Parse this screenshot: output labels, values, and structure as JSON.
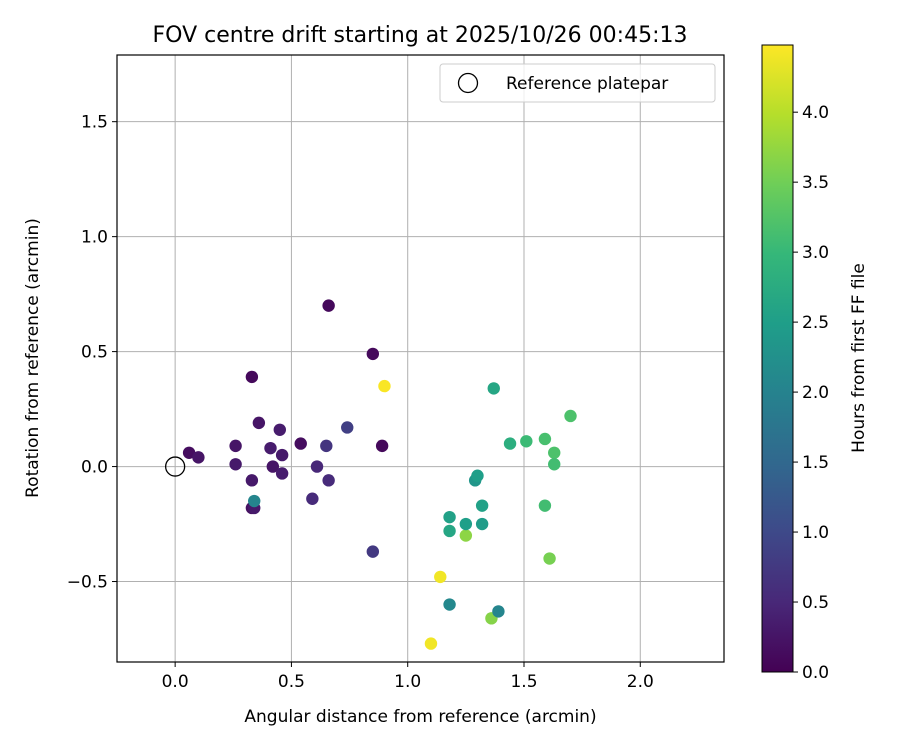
{
  "chart_data": {
    "type": "scatter",
    "title": "FOV centre drift starting at 2025/10/26 00:45:13",
    "xlabel": "Angular distance from reference (arcmin)",
    "ylabel": "Rotation from reference (arcmin)",
    "xlim": [
      -0.25,
      2.36
    ],
    "ylim": [
      -0.85,
      1.79
    ],
    "xticks": [
      0.0,
      0.5,
      1.0,
      1.5,
      2.0
    ],
    "xtick_labels": [
      "0.0",
      "0.5",
      "1.0",
      "1.5",
      "2.0"
    ],
    "yticks": [
      -0.5,
      0.0,
      0.5,
      1.0,
      1.5
    ],
    "ytick_labels": [
      "−0.5",
      "0.0",
      "0.5",
      "1.0",
      "1.5"
    ],
    "grid": true,
    "legend": {
      "location": "upper-right",
      "entries": [
        "Reference platepar"
      ]
    },
    "reference_point": {
      "x": 0.0,
      "y": 0.0,
      "marker": "open-circle",
      "color": "#000000"
    },
    "colorbar": {
      "label": "Hours from first FF file",
      "range": [
        0.0,
        4.48
      ],
      "ticks": [
        0.0,
        0.5,
        1.0,
        1.5,
        2.0,
        2.5,
        3.0,
        3.5,
        4.0
      ],
      "tick_labels": [
        "0.0",
        "0.5",
        "1.0",
        "1.5",
        "2.0",
        "2.5",
        "3.0",
        "3.5",
        "4.0"
      ],
      "colormap": "viridis",
      "colormap_stops": [
        "#440154",
        "#482878",
        "#3e4989",
        "#31688e",
        "#26828e",
        "#1f9e89",
        "#35b779",
        "#6ece58",
        "#b5de2b",
        "#fde725"
      ]
    },
    "points": [
      {
        "x": 0.06,
        "y": 0.06,
        "t": 0.15
      },
      {
        "x": 0.1,
        "y": 0.04,
        "t": 0.25
      },
      {
        "x": 0.26,
        "y": 0.09,
        "t": 0.25
      },
      {
        "x": 0.26,
        "y": 0.01,
        "t": 0.3
      },
      {
        "x": 0.33,
        "y": 0.39,
        "t": 0.1
      },
      {
        "x": 0.33,
        "y": -0.06,
        "t": 0.3
      },
      {
        "x": 0.33,
        "y": -0.18,
        "t": 0.2
      },
      {
        "x": 0.34,
        "y": -0.18,
        "t": 0.3
      },
      {
        "x": 0.34,
        "y": -0.15,
        "t": 2.05
      },
      {
        "x": 0.36,
        "y": 0.19,
        "t": 0.25
      },
      {
        "x": 0.41,
        "y": 0.08,
        "t": 0.35
      },
      {
        "x": 0.42,
        "y": 0.0,
        "t": 0.25
      },
      {
        "x": 0.45,
        "y": 0.16,
        "t": 0.35
      },
      {
        "x": 0.46,
        "y": 0.05,
        "t": 0.3
      },
      {
        "x": 0.46,
        "y": -0.03,
        "t": 0.35
      },
      {
        "x": 0.54,
        "y": 0.1,
        "t": 0.15
      },
      {
        "x": 0.59,
        "y": -0.14,
        "t": 0.55
      },
      {
        "x": 0.61,
        "y": 0.0,
        "t": 0.5
      },
      {
        "x": 0.65,
        "y": 0.09,
        "t": 0.7
      },
      {
        "x": 0.66,
        "y": -0.06,
        "t": 0.55
      },
      {
        "x": 0.66,
        "y": 0.7,
        "t": 0.1
      },
      {
        "x": 0.74,
        "y": 0.17,
        "t": 0.85
      },
      {
        "x": 0.85,
        "y": 0.49,
        "t": 0.1
      },
      {
        "x": 0.85,
        "y": -0.37,
        "t": 0.75
      },
      {
        "x": 0.89,
        "y": 0.09,
        "t": 0.1
      },
      {
        "x": 0.9,
        "y": 0.35,
        "t": 4.45
      },
      {
        "x": 1.1,
        "y": -0.77,
        "t": 4.4
      },
      {
        "x": 1.14,
        "y": -0.48,
        "t": 4.4
      },
      {
        "x": 1.18,
        "y": -0.22,
        "t": 2.55
      },
      {
        "x": 1.18,
        "y": -0.28,
        "t": 2.65
      },
      {
        "x": 1.18,
        "y": -0.6,
        "t": 2.1
      },
      {
        "x": 1.25,
        "y": -0.3,
        "t": 3.7
      },
      {
        "x": 1.25,
        "y": -0.25,
        "t": 2.5
      },
      {
        "x": 1.29,
        "y": -0.06,
        "t": 2.35
      },
      {
        "x": 1.3,
        "y": -0.04,
        "t": 2.5
      },
      {
        "x": 1.32,
        "y": -0.17,
        "t": 2.55
      },
      {
        "x": 1.32,
        "y": -0.25,
        "t": 2.45
      },
      {
        "x": 1.36,
        "y": -0.66,
        "t": 3.65
      },
      {
        "x": 1.37,
        "y": 0.34,
        "t": 2.65
      },
      {
        "x": 1.39,
        "y": -0.63,
        "t": 2.05
      },
      {
        "x": 1.44,
        "y": 0.1,
        "t": 2.8
      },
      {
        "x": 1.51,
        "y": 0.11,
        "t": 3.05
      },
      {
        "x": 1.59,
        "y": 0.12,
        "t": 3.15
      },
      {
        "x": 1.59,
        "y": -0.17,
        "t": 3.1
      },
      {
        "x": 1.61,
        "y": -0.4,
        "t": 3.55
      },
      {
        "x": 1.63,
        "y": 0.06,
        "t": 3.2
      },
      {
        "x": 1.63,
        "y": 0.01,
        "t": 3.1
      },
      {
        "x": 1.7,
        "y": 0.22,
        "t": 3.2
      }
    ]
  }
}
